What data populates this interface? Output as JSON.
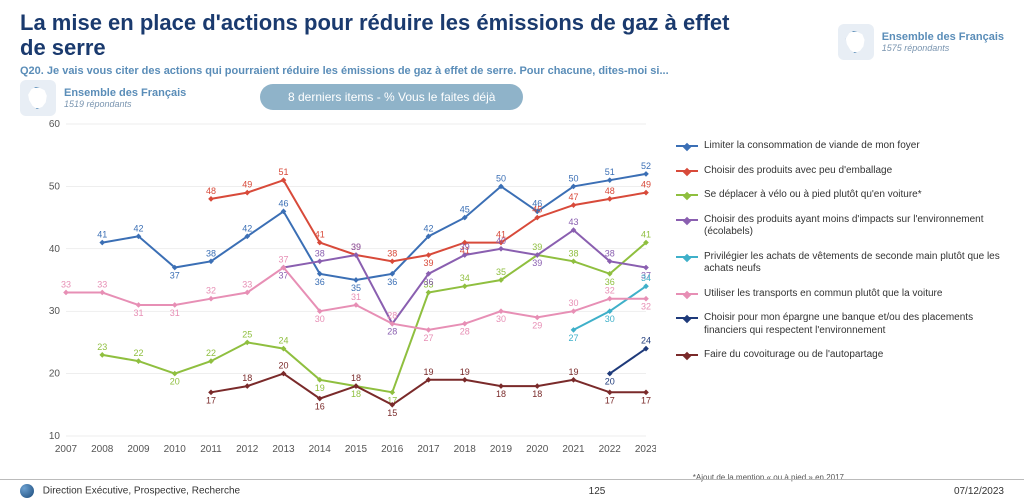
{
  "title": "La mise en place d'actions pour réduire les émissions de gaz à effet de serre",
  "subtitle": "Q20. Je vais vous citer des actions qui pourraient réduire les émissions de gaz à effet de serre. Pour chacune, dites-moi si...",
  "badge_right": {
    "line1": "Ensemble des Français",
    "line2": "1575 répondants"
  },
  "badge_left": {
    "line1": "Ensemble des Français",
    "line2": "1519 répondants"
  },
  "pill": "8 derniers items - % Vous le faites déjà",
  "footnote": "*Ajout de la mention « ou à pied » en 2017",
  "footer": {
    "org": "Direction Exécutive, Prospective, Recherche",
    "page": "125",
    "date": "07/12/2023"
  },
  "chart": {
    "type": "line",
    "x_categories": [
      "2007",
      "2008",
      "2009",
      "2010",
      "2011",
      "2012",
      "2013",
      "2014",
      "2015",
      "2016",
      "2017",
      "2018",
      "2019",
      "2020",
      "2021",
      "2022",
      "2023"
    ],
    "ylim": [
      10,
      60
    ],
    "ytick_step": 10,
    "background_color": "#ffffff",
    "grid_color": "#dddddd",
    "axis_fontsize": 10,
    "label_fontsize": 9,
    "line_width": 2,
    "marker_size": 4,
    "series": [
      {
        "name": "Limiter la consommation de viande de mon foyer",
        "color": "#3b6fb5",
        "values": [
          null,
          41,
          42,
          37,
          38,
          42,
          46,
          36,
          35,
          36,
          42,
          45,
          50,
          46,
          50,
          51,
          52
        ],
        "label_positions": [
          "",
          "t",
          "t",
          "b",
          "t",
          "t",
          "t",
          "b",
          "b",
          "b",
          "t",
          "t",
          "t",
          "t",
          "t",
          "t",
          "t"
        ]
      },
      {
        "name": "Choisir des produits avec peu d'emballage",
        "color": "#d84a3a",
        "values": [
          null,
          null,
          null,
          null,
          48,
          49,
          51,
          41,
          39,
          38,
          39,
          41,
          41,
          45,
          47,
          48,
          49
        ],
        "label_positions": [
          "",
          "",
          "",
          "",
          "t",
          "t",
          "t",
          "t",
          "t",
          "t",
          "b",
          "b",
          "t",
          "t",
          "t",
          "t",
          "t"
        ]
      },
      {
        "name": "Se déplacer à vélo ou à pied plutôt qu'en voiture*",
        "color": "#8fbf3f",
        "values": [
          null,
          23,
          22,
          20,
          22,
          25,
          24,
          19,
          18,
          17,
          33,
          34,
          35,
          39,
          38,
          36,
          41
        ],
        "label_positions": [
          "",
          "t",
          "t",
          "b",
          "t",
          "t",
          "t",
          "b",
          "b",
          "b",
          "t",
          "t",
          "t",
          "t",
          "t",
          "b",
          "t"
        ]
      },
      {
        "name": "Choisir des produits ayant moins d'impacts sur l'environnement (écolabels)",
        "color": "#8a5fb0",
        "values": [
          null,
          null,
          null,
          null,
          null,
          null,
          37,
          38,
          39,
          28,
          36,
          39,
          40,
          39,
          43,
          38,
          37
        ],
        "label_positions": [
          "",
          "",
          "",
          "",
          "",
          "",
          "b",
          "t",
          "t",
          "b",
          "b",
          "t",
          "t",
          "b",
          "t",
          "t",
          "b"
        ]
      },
      {
        "name": "Privilégier les achats de vêtements de seconde main plutôt que les achats neufs",
        "color": "#3fb0c9",
        "values": [
          null,
          null,
          null,
          null,
          null,
          null,
          null,
          null,
          null,
          null,
          null,
          null,
          null,
          null,
          27,
          30,
          34
        ],
        "label_positions": [
          "",
          "",
          "",
          "",
          "",
          "",
          "",
          "",
          "",
          "",
          "",
          "",
          "",
          "",
          "b",
          "b",
          "t"
        ]
      },
      {
        "name": "Utiliser les transports en commun plutôt que la voiture",
        "color": "#e78fb5",
        "values": [
          33,
          33,
          31,
          31,
          32,
          33,
          37,
          30,
          31,
          28,
          27,
          28,
          30,
          29,
          30,
          32,
          32
        ],
        "label_positions": [
          "t",
          "t",
          "b",
          "b",
          "t",
          "t",
          "t",
          "b",
          "t",
          "t",
          "b",
          "b",
          "b",
          "b",
          "t",
          "t",
          "b"
        ]
      },
      {
        "name": "Choisir pour mon épargne une banque et/ou des placements financiers qui respectent l'environnement",
        "color": "#1e3a7a",
        "values": [
          null,
          null,
          null,
          null,
          null,
          null,
          null,
          null,
          null,
          null,
          null,
          null,
          null,
          null,
          null,
          20,
          24
        ],
        "label_positions": [
          "",
          "",
          "",
          "",
          "",
          "",
          "",
          "",
          "",
          "",
          "",
          "",
          "",
          "",
          "",
          "b",
          "t"
        ]
      },
      {
        "name": "Faire du covoiturage ou de l'autopartage",
        "color": "#7a2a2a",
        "values": [
          null,
          null,
          null,
          null,
          17,
          18,
          20,
          16,
          18,
          15,
          19,
          19,
          18,
          18,
          19,
          17,
          17
        ],
        "label_positions": [
          "",
          "",
          "",
          "",
          "b",
          "t",
          "t",
          "b",
          "t",
          "b",
          "t",
          "t",
          "b",
          "b",
          "t",
          "b",
          "b"
        ]
      }
    ]
  }
}
